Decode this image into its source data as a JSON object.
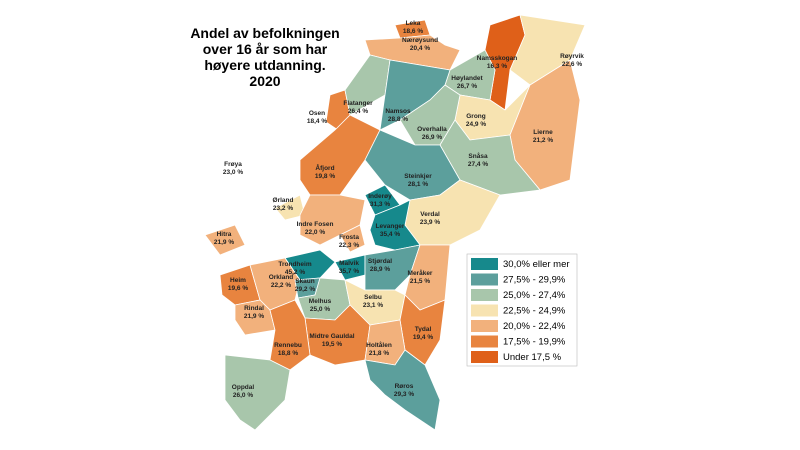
{
  "title_lines": [
    "Andel av befolkningen",
    "over 16 år som har",
    "høyere utdanning.",
    "2020"
  ],
  "legend": [
    {
      "label": "30,0% eller mer",
      "color": "#16898c"
    },
    {
      "label": "27,5% - 29,9%",
      "color": "#5c9f9c"
    },
    {
      "label": "25,0% - 27,4%",
      "color": "#a8c6ab"
    },
    {
      "label": "22,5% - 24,9%",
      "color": "#f7e3b1"
    },
    {
      "label": "20,0% - 22,4%",
      "color": "#f2b17c"
    },
    {
      "label": "17,5% - 19,9%",
      "color": "#e8843f"
    },
    {
      "label": "Under 17,5 %",
      "color": "#df6019"
    }
  ],
  "municipalities": [
    {
      "name": "Leka",
      "value": "18,6 %",
      "color": "#e8843f"
    },
    {
      "name": "Nærøysund",
      "value": "20,4 %",
      "color": "#f2b17c"
    },
    {
      "name": "Namsskogan",
      "value": "16,3 %",
      "color": "#df6019"
    },
    {
      "name": "Røyrvik",
      "value": "22,6 %",
      "color": "#f7e3b1"
    },
    {
      "name": "Høylandet",
      "value": "26,7 %",
      "color": "#a8c6ab"
    },
    {
      "name": "Osen",
      "value": "18,4 %",
      "color": "#e8843f"
    },
    {
      "name": "Flatanger",
      "value": "26,4 %",
      "color": "#a8c6ab"
    },
    {
      "name": "Namsos",
      "value": "28,8 %",
      "color": "#5c9f9c"
    },
    {
      "name": "Grong",
      "value": "24,9 %",
      "color": "#f7e3b1"
    },
    {
      "name": "Lierne",
      "value": "21,2 %",
      "color": "#f2b17c"
    },
    {
      "name": "Overhalla",
      "value": "26,9 %",
      "color": "#a8c6ab"
    },
    {
      "name": "Snåsa",
      "value": "27,4 %",
      "color": "#a8c6ab"
    },
    {
      "name": "Frøya",
      "value": "23,0 %",
      "color": "#f7e3b1"
    },
    {
      "name": "Åfjord",
      "value": "19,8 %",
      "color": "#e8843f"
    },
    {
      "name": "Steinkjer",
      "value": "28,1 %",
      "color": "#5c9f9c"
    },
    {
      "name": "Ørland",
      "value": "23,2 %",
      "color": "#f7e3b1"
    },
    {
      "name": "Inderøy",
      "value": "31,3 %",
      "color": "#16898c"
    },
    {
      "name": "Verdal",
      "value": "23,9 %",
      "color": "#f7e3b1"
    },
    {
      "name": "Hitra",
      "value": "21,9 %",
      "color": "#f2b17c"
    },
    {
      "name": "Indre Fosen",
      "value": "22,0 %",
      "color": "#f2b17c"
    },
    {
      "name": "Frosta",
      "value": "22,3 %",
      "color": "#f2b17c"
    },
    {
      "name": "Levanger",
      "value": "35,4 %",
      "color": "#16898c"
    },
    {
      "name": "Trondheim",
      "value": "45,2 %",
      "color": "#16898c"
    },
    {
      "name": "Malvik",
      "value": "35,7 %",
      "color": "#16898c"
    },
    {
      "name": "Stjørdal",
      "value": "28,9 %",
      "color": "#5c9f9c"
    },
    {
      "name": "Meråker",
      "value": "21,5 %",
      "color": "#f2b17c"
    },
    {
      "name": "Heim",
      "value": "19,6 %",
      "color": "#e8843f"
    },
    {
      "name": "Orkland",
      "value": "22,2 %",
      "color": "#f2b17c"
    },
    {
      "name": "Skaun",
      "value": "29,2 %",
      "color": "#5c9f9c"
    },
    {
      "name": "Melhus",
      "value": "25,0 %",
      "color": "#a8c6ab"
    },
    {
      "name": "Selbu",
      "value": "23,1 %",
      "color": "#f7e3b1"
    },
    {
      "name": "Rindal",
      "value": "21,9 %",
      "color": "#f2b17c"
    },
    {
      "name": "Tydal",
      "value": "19,4 %",
      "color": "#e8843f"
    },
    {
      "name": "Midtre Gauldal",
      "value": "19,5 %",
      "color": "#e8843f"
    },
    {
      "name": "Rennebu",
      "value": "18,8 %",
      "color": "#e8843f"
    },
    {
      "name": "Holtålen",
      "value": "21,8 %",
      "color": "#f2b17c"
    },
    {
      "name": "Oppdal",
      "value": "26,0 %",
      "color": "#a8c6ab"
    },
    {
      "name": "Røros",
      "value": "29,3 %",
      "color": "#5c9f9c"
    }
  ]
}
